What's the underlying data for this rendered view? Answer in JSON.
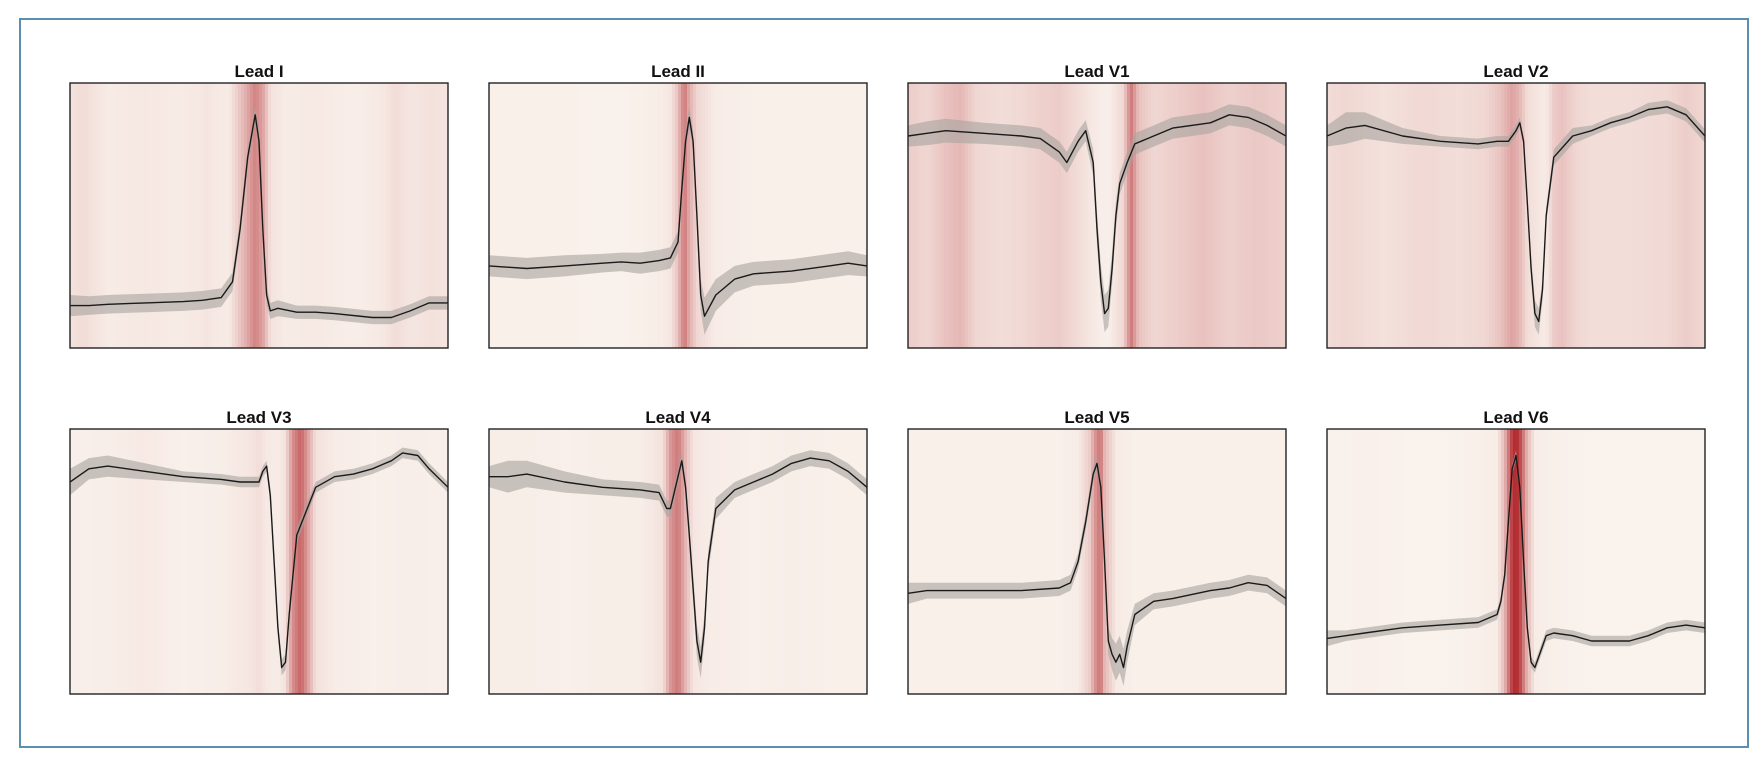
{
  "colors": {
    "trace": "#1a1a1a",
    "band": "#a9a49f",
    "heat_low": "#fbf6f0",
    "heat_high": "#b0252a",
    "frame_border": "#5b8fb0",
    "axes_border": "#222222"
  },
  "chart_data": [
    {
      "type": "line",
      "title": "Lead I",
      "xlabel": "",
      "ylabel": "",
      "ylim": [
        0,
        1
      ],
      "grid": false,
      "legend": "none",
      "x": [
        0,
        0.05,
        0.1,
        0.2,
        0.3,
        0.35,
        0.4,
        0.43,
        0.45,
        0.47,
        0.49,
        0.5,
        0.51,
        0.52,
        0.53,
        0.55,
        0.6,
        0.65,
        0.7,
        0.8,
        0.85,
        0.9,
        0.95,
        1
      ],
      "y": [
        0.16,
        0.16,
        0.165,
        0.17,
        0.175,
        0.18,
        0.19,
        0.25,
        0.45,
        0.72,
        0.88,
        0.78,
        0.45,
        0.2,
        0.14,
        0.15,
        0.135,
        0.135,
        0.13,
        0.115,
        0.115,
        0.14,
        0.17,
        0.17
      ],
      "band": [
        0.04,
        0.035,
        0.035,
        0.035,
        0.035,
        0.035,
        0.035,
        0.035,
        0.035,
        0.035,
        0.035,
        0.035,
        0.035,
        0.035,
        0.03,
        0.03,
        0.025,
        0.025,
        0.025,
        0.025,
        0.025,
        0.025,
        0.025,
        0.025
      ],
      "saliency_x": [
        0,
        0.04,
        0.1,
        0.2,
        0.28,
        0.32,
        0.36,
        0.42,
        0.46,
        0.49,
        0.51,
        0.53,
        0.57,
        0.65,
        0.75,
        0.82,
        0.86,
        0.9,
        0.96,
        1
      ],
      "saliency": [
        0.1,
        0.12,
        0.05,
        0.07,
        0.05,
        0.06,
        0.08,
        0.05,
        0.3,
        0.55,
        0.4,
        0.1,
        0.05,
        0.06,
        0.04,
        0.06,
        0.12,
        0.08,
        0.1,
        0.08
      ]
    },
    {
      "type": "line",
      "title": "Lead II",
      "xlabel": "",
      "ylabel": "",
      "ylim": [
        0,
        1
      ],
      "grid": false,
      "legend": "none",
      "x": [
        0,
        0.1,
        0.2,
        0.3,
        0.35,
        0.4,
        0.45,
        0.48,
        0.5,
        0.51,
        0.52,
        0.53,
        0.54,
        0.55,
        0.56,
        0.57,
        0.6,
        0.65,
        0.7,
        0.8,
        0.9,
        0.95,
        1
      ],
      "y": [
        0.31,
        0.3,
        0.31,
        0.32,
        0.325,
        0.32,
        0.33,
        0.34,
        0.4,
        0.6,
        0.78,
        0.87,
        0.78,
        0.5,
        0.2,
        0.12,
        0.2,
        0.26,
        0.28,
        0.29,
        0.31,
        0.32,
        0.31
      ],
      "band": [
        0.04,
        0.04,
        0.04,
        0.035,
        0.035,
        0.04,
        0.04,
        0.04,
        0.04,
        0.04,
        0.04,
        0.04,
        0.04,
        0.05,
        0.06,
        0.07,
        0.06,
        0.05,
        0.045,
        0.045,
        0.045,
        0.045,
        0.04
      ],
      "saliency_x": [
        0,
        0.1,
        0.2,
        0.3,
        0.4,
        0.46,
        0.48,
        0.5,
        0.51,
        0.52,
        0.53,
        0.55,
        0.6,
        0.7,
        0.8,
        0.9,
        1
      ],
      "saliency": [
        0.03,
        0.03,
        0.03,
        0.02,
        0.03,
        0.05,
        0.08,
        0.25,
        0.5,
        0.55,
        0.35,
        0.15,
        0.05,
        0.03,
        0.03,
        0.03,
        0.03
      ]
    },
    {
      "type": "line",
      "title": "Lead V1",
      "xlabel": "",
      "ylabel": "",
      "ylim": [
        0,
        1
      ],
      "grid": false,
      "legend": "none",
      "x": [
        0,
        0.05,
        0.1,
        0.2,
        0.3,
        0.35,
        0.38,
        0.4,
        0.42,
        0.45,
        0.47,
        0.49,
        0.5,
        0.51,
        0.52,
        0.53,
        0.54,
        0.55,
        0.56,
        0.58,
        0.6,
        0.65,
        0.7,
        0.8,
        0.85,
        0.9,
        0.95,
        1
      ],
      "y": [
        0.8,
        0.81,
        0.82,
        0.81,
        0.8,
        0.79,
        0.76,
        0.74,
        0.7,
        0.78,
        0.82,
        0.7,
        0.45,
        0.25,
        0.13,
        0.15,
        0.3,
        0.5,
        0.62,
        0.7,
        0.77,
        0.8,
        0.83,
        0.85,
        0.88,
        0.87,
        0.84,
        0.8
      ],
      "band": [
        0.04,
        0.045,
        0.045,
        0.04,
        0.04,
        0.04,
        0.04,
        0.04,
        0.04,
        0.04,
        0.04,
        0.05,
        0.06,
        0.07,
        0.07,
        0.07,
        0.06,
        0.05,
        0.04,
        0.04,
        0.04,
        0.04,
        0.04,
        0.04,
        0.04,
        0.04,
        0.04,
        0.04
      ],
      "saliency_x": [
        0,
        0.05,
        0.1,
        0.14,
        0.18,
        0.25,
        0.3,
        0.35,
        0.4,
        0.45,
        0.5,
        0.53,
        0.57,
        0.59,
        0.61,
        0.65,
        0.72,
        0.78,
        0.85,
        0.92,
        1
      ],
      "saliency": [
        0.2,
        0.15,
        0.25,
        0.3,
        0.15,
        0.12,
        0.14,
        0.18,
        0.2,
        0.12,
        0.05,
        0.03,
        0.15,
        0.6,
        0.25,
        0.15,
        0.2,
        0.25,
        0.18,
        0.22,
        0.18
      ]
    },
    {
      "type": "line",
      "title": "Lead V2",
      "xlabel": "",
      "ylabel": "",
      "ylim": [
        0,
        1
      ],
      "grid": false,
      "legend": "none",
      "x": [
        0,
        0.05,
        0.1,
        0.2,
        0.3,
        0.4,
        0.45,
        0.48,
        0.5,
        0.51,
        0.52,
        0.53,
        0.54,
        0.55,
        0.56,
        0.57,
        0.58,
        0.6,
        0.65,
        0.7,
        0.75,
        0.8,
        0.85,
        0.9,
        0.95,
        1
      ],
      "y": [
        0.8,
        0.83,
        0.84,
        0.8,
        0.78,
        0.77,
        0.78,
        0.78,
        0.82,
        0.85,
        0.78,
        0.55,
        0.3,
        0.13,
        0.1,
        0.22,
        0.5,
        0.72,
        0.8,
        0.82,
        0.85,
        0.87,
        0.9,
        0.91,
        0.88,
        0.8
      ],
      "band": [
        0.04,
        0.06,
        0.05,
        0.03,
        0.02,
        0.02,
        0.02,
        0.02,
        0.02,
        0.02,
        0.02,
        0.03,
        0.04,
        0.05,
        0.05,
        0.04,
        0.03,
        0.03,
        0.03,
        0.02,
        0.02,
        0.02,
        0.025,
        0.025,
        0.025,
        0.025
      ],
      "saliency_x": [
        0,
        0.05,
        0.15,
        0.25,
        0.35,
        0.42,
        0.46,
        0.49,
        0.51,
        0.53,
        0.58,
        0.6,
        0.62,
        0.66,
        0.7,
        0.8,
        0.9,
        0.95,
        1
      ],
      "saliency": [
        0.12,
        0.15,
        0.1,
        0.14,
        0.12,
        0.15,
        0.25,
        0.4,
        0.3,
        0.12,
        0.05,
        0.2,
        0.25,
        0.15,
        0.12,
        0.12,
        0.14,
        0.2,
        0.15
      ]
    },
    {
      "type": "line",
      "title": "Lead V3",
      "xlabel": "",
      "ylabel": "",
      "ylim": [
        0,
        1
      ],
      "grid": false,
      "legend": "none",
      "x": [
        0,
        0.05,
        0.1,
        0.2,
        0.3,
        0.4,
        0.45,
        0.48,
        0.5,
        0.51,
        0.52,
        0.53,
        0.54,
        0.55,
        0.56,
        0.57,
        0.58,
        0.6,
        0.65,
        0.7,
        0.75,
        0.8,
        0.85,
        0.88,
        0.92,
        0.95,
        1
      ],
      "y": [
        0.8,
        0.85,
        0.86,
        0.84,
        0.82,
        0.81,
        0.8,
        0.8,
        0.8,
        0.84,
        0.86,
        0.75,
        0.5,
        0.25,
        0.1,
        0.12,
        0.3,
        0.6,
        0.78,
        0.82,
        0.83,
        0.85,
        0.88,
        0.91,
        0.9,
        0.85,
        0.78
      ],
      "band": [
        0.05,
        0.04,
        0.04,
        0.03,
        0.02,
        0.02,
        0.02,
        0.02,
        0.02,
        0.02,
        0.02,
        0.03,
        0.03,
        0.03,
        0.03,
        0.03,
        0.03,
        0.03,
        0.02,
        0.02,
        0.02,
        0.02,
        0.02,
        0.02,
        0.02,
        0.02,
        0.02
      ],
      "saliency_x": [
        0,
        0.1,
        0.2,
        0.3,
        0.4,
        0.48,
        0.5,
        0.52,
        0.55,
        0.57,
        0.59,
        0.61,
        0.63,
        0.65,
        0.7,
        0.8,
        0.9,
        1
      ],
      "saliency": [
        0.03,
        0.04,
        0.06,
        0.03,
        0.04,
        0.08,
        0.12,
        0.06,
        0.05,
        0.1,
        0.5,
        0.7,
        0.4,
        0.1,
        0.05,
        0.03,
        0.04,
        0.03
      ]
    },
    {
      "type": "line",
      "title": "Lead V4",
      "xlabel": "",
      "ylabel": "",
      "ylim": [
        0,
        1
      ],
      "grid": false,
      "legend": "none",
      "x": [
        0,
        0.05,
        0.1,
        0.2,
        0.3,
        0.4,
        0.45,
        0.47,
        0.48,
        0.5,
        0.51,
        0.52,
        0.53,
        0.54,
        0.55,
        0.56,
        0.57,
        0.58,
        0.6,
        0.65,
        0.7,
        0.75,
        0.8,
        0.85,
        0.9,
        0.95,
        1
      ],
      "y": [
        0.82,
        0.82,
        0.83,
        0.8,
        0.78,
        0.77,
        0.76,
        0.7,
        0.7,
        0.82,
        0.88,
        0.78,
        0.6,
        0.4,
        0.2,
        0.12,
        0.25,
        0.5,
        0.7,
        0.77,
        0.8,
        0.83,
        0.87,
        0.89,
        0.88,
        0.84,
        0.78
      ],
      "band": [
        0.04,
        0.06,
        0.05,
        0.04,
        0.03,
        0.03,
        0.03,
        0.03,
        0.03,
        0.03,
        0.03,
        0.03,
        0.04,
        0.05,
        0.06,
        0.06,
        0.05,
        0.04,
        0.04,
        0.03,
        0.03,
        0.03,
        0.03,
        0.03,
        0.03,
        0.03,
        0.03
      ],
      "saliency_x": [
        0,
        0.1,
        0.2,
        0.3,
        0.4,
        0.46,
        0.48,
        0.5,
        0.52,
        0.54,
        0.58,
        0.7,
        0.8,
        0.9,
        1
      ],
      "saliency": [
        0.04,
        0.04,
        0.03,
        0.04,
        0.04,
        0.1,
        0.45,
        0.6,
        0.3,
        0.08,
        0.05,
        0.03,
        0.04,
        0.03,
        0.03
      ],
      "saliency_note": ""
    },
    {
      "type": "line",
      "title": "Lead V5",
      "xlabel": "",
      "ylabel": "",
      "ylim": [
        0,
        1
      ],
      "grid": false,
      "legend": "none",
      "x": [
        0,
        0.05,
        0.1,
        0.2,
        0.3,
        0.4,
        0.43,
        0.45,
        0.47,
        0.49,
        0.5,
        0.51,
        0.52,
        0.53,
        0.54,
        0.55,
        0.56,
        0.57,
        0.58,
        0.6,
        0.65,
        0.7,
        0.8,
        0.85,
        0.9,
        0.95,
        1
      ],
      "y": [
        0.38,
        0.39,
        0.39,
        0.39,
        0.39,
        0.4,
        0.42,
        0.5,
        0.65,
        0.83,
        0.87,
        0.78,
        0.5,
        0.2,
        0.15,
        0.12,
        0.15,
        0.1,
        0.18,
        0.3,
        0.35,
        0.36,
        0.39,
        0.4,
        0.42,
        0.41,
        0.36
      ],
      "band": [
        0.04,
        0.03,
        0.03,
        0.03,
        0.03,
        0.03,
        0.03,
        0.03,
        0.03,
        0.03,
        0.03,
        0.03,
        0.04,
        0.05,
        0.06,
        0.07,
        0.07,
        0.07,
        0.06,
        0.04,
        0.03,
        0.03,
        0.03,
        0.03,
        0.03,
        0.03,
        0.03
      ],
      "saliency_x": [
        0,
        0.1,
        0.2,
        0.3,
        0.4,
        0.45,
        0.48,
        0.5,
        0.51,
        0.52,
        0.55,
        0.6,
        0.7,
        0.8,
        0.9,
        1
      ],
      "saliency": [
        0.03,
        0.03,
        0.03,
        0.03,
        0.03,
        0.05,
        0.2,
        0.55,
        0.6,
        0.3,
        0.06,
        0.03,
        0.03,
        0.03,
        0.03,
        0.03
      ]
    },
    {
      "type": "line",
      "title": "Lead V6",
      "xlabel": "",
      "ylabel": "",
      "ylim": [
        0,
        1
      ],
      "grid": false,
      "legend": "none",
      "x": [
        0,
        0.05,
        0.1,
        0.2,
        0.3,
        0.4,
        0.45,
        0.46,
        0.47,
        0.48,
        0.49,
        0.5,
        0.51,
        0.52,
        0.53,
        0.54,
        0.55,
        0.56,
        0.58,
        0.6,
        0.65,
        0.7,
        0.8,
        0.85,
        0.9,
        0.95,
        1
      ],
      "y": [
        0.21,
        0.22,
        0.23,
        0.25,
        0.26,
        0.27,
        0.3,
        0.35,
        0.45,
        0.65,
        0.85,
        0.9,
        0.78,
        0.5,
        0.25,
        0.12,
        0.1,
        0.14,
        0.22,
        0.23,
        0.22,
        0.2,
        0.2,
        0.22,
        0.25,
        0.26,
        0.25
      ],
      "band": [
        0.03,
        0.02,
        0.02,
        0.02,
        0.02,
        0.02,
        0.02,
        0.02,
        0.02,
        0.02,
        0.02,
        0.02,
        0.02,
        0.02,
        0.02,
        0.02,
        0.02,
        0.02,
        0.02,
        0.02,
        0.02,
        0.02,
        0.02,
        0.02,
        0.02,
        0.02,
        0.02
      ],
      "saliency_x": [
        0,
        0.1,
        0.2,
        0.3,
        0.4,
        0.45,
        0.47,
        0.49,
        0.5,
        0.51,
        0.53,
        0.55,
        0.6,
        0.7,
        0.8,
        0.9,
        1
      ],
      "saliency": [
        0.02,
        0.03,
        0.02,
        0.02,
        0.03,
        0.05,
        0.3,
        0.9,
        1.0,
        0.85,
        0.3,
        0.05,
        0.03,
        0.02,
        0.02,
        0.02,
        0.02
      ]
    }
  ]
}
